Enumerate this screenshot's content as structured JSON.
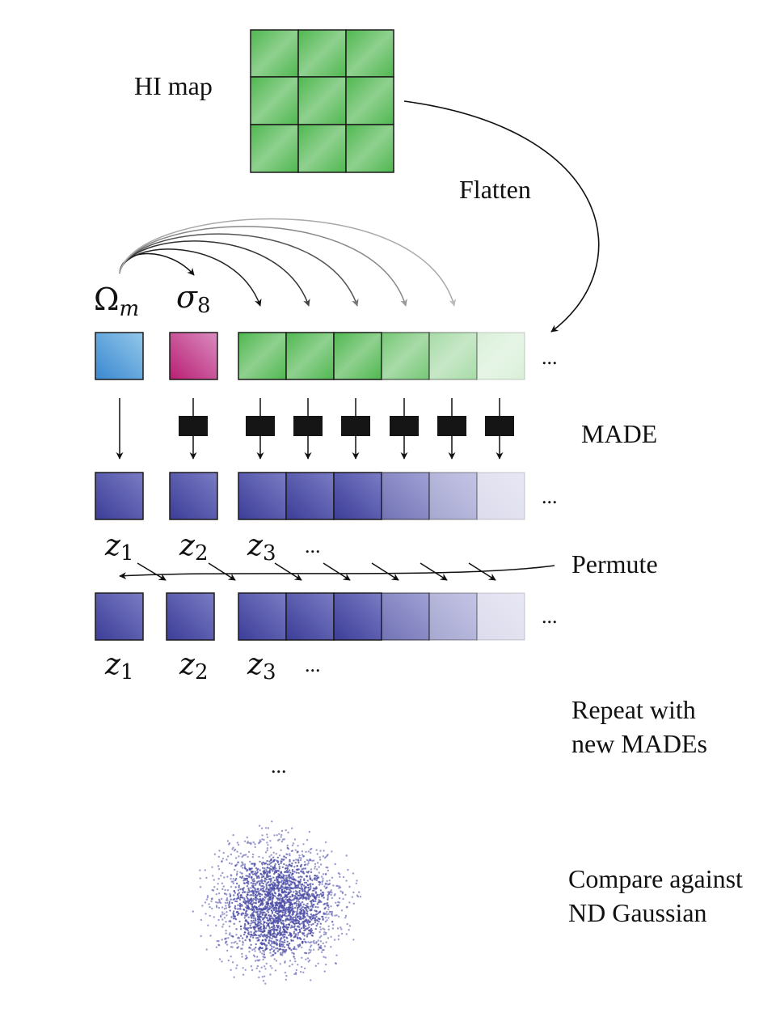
{
  "labels": {
    "hi_map": "HI map",
    "flatten": "Flatten",
    "made": "MADE",
    "permute": "Permute",
    "repeat_line1": "Repeat with",
    "repeat_line2": "new MADEs",
    "compare_line1": "Compare against",
    "compare_line2": "ND Gaussian",
    "ellipsis": "..."
  },
  "params": {
    "omega": "Ω",
    "omega_sub": "m",
    "sigma": "σ",
    "sigma_sub": "8"
  },
  "latents": {
    "z": "z",
    "z1_sub": "1",
    "z2_sub": "2",
    "z3_sub": "3"
  },
  "colors": {
    "green": "#5cb85c",
    "blue_param": "#4a9fd8",
    "magenta_param": "#c0347e",
    "latent_blue": "#4b4ca6",
    "made_block": "#151515"
  }
}
